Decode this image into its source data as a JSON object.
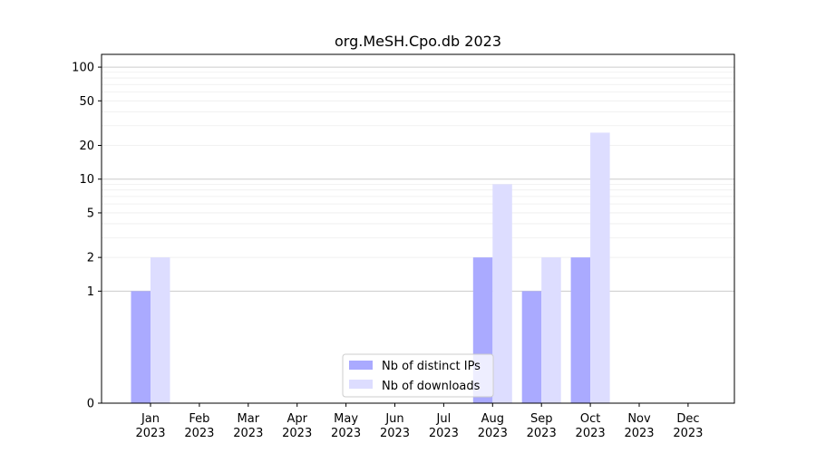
{
  "chart_data": {
    "type": "bar",
    "title": "org.MeSH.Cpo.db 2023",
    "xlabel": "",
    "ylabel": "",
    "y_scale": "symlog",
    "ylim": [
      0,
      130
    ],
    "y_ticks": [
      0,
      1,
      2,
      5,
      10,
      20,
      50,
      100
    ],
    "y_tick_labels": [
      "0",
      "1",
      "2",
      "5",
      "10",
      "20",
      "50",
      "100"
    ],
    "categories": [
      "Jan\n2023",
      "Feb\n2023",
      "Mar\n2023",
      "Apr\n2023",
      "May\n2023",
      "Jun\n2023",
      "Jul\n2023",
      "Aug\n2023",
      "Sep\n2023",
      "Oct\n2023",
      "Nov\n2023",
      "Dec\n2023"
    ],
    "category_lines": [
      [
        "Jan",
        "2023"
      ],
      [
        "Feb",
        "2023"
      ],
      [
        "Mar",
        "2023"
      ],
      [
        "Apr",
        "2023"
      ],
      [
        "May",
        "2023"
      ],
      [
        "Jun",
        "2023"
      ],
      [
        "Jul",
        "2023"
      ],
      [
        "Aug",
        "2023"
      ],
      [
        "Sep",
        "2023"
      ],
      [
        "Oct",
        "2023"
      ],
      [
        "Nov",
        "2023"
      ],
      [
        "Dec",
        "2023"
      ]
    ],
    "series": [
      {
        "name": "Nb of distinct IPs",
        "color": "#aaaaff",
        "values": [
          1,
          0,
          0,
          0,
          0,
          0,
          0,
          2,
          1,
          2,
          0,
          0
        ]
      },
      {
        "name": "Nb of downloads",
        "color": "#ddddff",
        "values": [
          2,
          0,
          0,
          0,
          0,
          0,
          0,
          9,
          2,
          26,
          0,
          0
        ]
      }
    ],
    "grid": true,
    "legend_position": "bottom-center"
  }
}
